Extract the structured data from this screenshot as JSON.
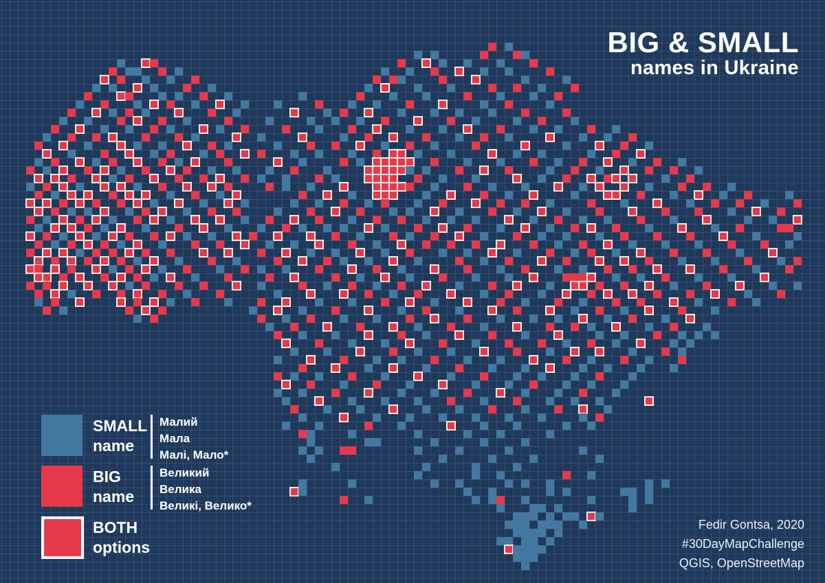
{
  "title": {
    "line1": "BIG & SMALL",
    "line2": "names in Ukraine"
  },
  "legend": {
    "items": [
      {
        "key": "small",
        "word": "SMALL",
        "word2": "name",
        "examples": [
          "Малий",
          "Мала",
          "Малі, Мало*"
        ]
      },
      {
        "key": "big",
        "word": "BIG",
        "word2": "name",
        "examples": [
          "Великий",
          "Велика",
          "Великі, Велико*"
        ]
      },
      {
        "key": "both",
        "word": "BOTH",
        "word2": "options",
        "examples": []
      }
    ]
  },
  "credits": {
    "lines": [
      "Fedir Gontsa, 2020",
      "#30DayMapChallenge",
      "QGIS, OpenStreetMap"
    ]
  },
  "colors": {
    "background": "#20395a",
    "grid_line": "rgba(125,165,220,0.18)",
    "small": "#44799f",
    "big": "#e6394b",
    "both_fill": "#e6394b",
    "both_border": "#f2eee5",
    "text": "#ffffff"
  },
  "map": {
    "cell_size": 12,
    "legend_chars": {
      "s": "small-name",
      "b": "big-name",
      "x": "both-options",
      ".": "empty"
    },
    "grid_rows": [
      [
        "..........",
        "..........",
        "..........",
        "..........",
        "..........",
        "..........",
        "..........",
        "..........",
        "..........",
        ".........."
      ],
      [
        "..........",
        "..........",
        "..........",
        "..........",
        "..........",
        "..........",
        "..........",
        "..........",
        "..........",
        ".........."
      ],
      [
        "..........",
        "..........",
        "..........",
        "..........",
        "..........",
        "..........",
        "..........",
        "..........",
        "..........",
        ".........."
      ],
      [
        "..........",
        "..........",
        "..........",
        "..........",
        "..........",
        "..........",
        "..........",
        "..........",
        "..........",
        ".........."
      ],
      [
        "..........",
        "..........",
        "..........",
        "..........",
        "..........",
        "..........",
        "..........",
        "..........",
        "..........",
        ".........."
      ],
      [
        "..........",
        "..........",
        "..........",
        "..........",
        "..........",
        ".........b",
        ".s........",
        "..........",
        "..........",
        ".........."
      ],
      [
        "..........",
        "..........",
        "..........",
        "..........",
        "..........",
        "s.s.....b.",
        "..bs......",
        "..........",
        "..........",
        ".........."
      ],
      [
        "..........",
        "....s..xb.",
        "..........",
        "..........",
        "........b.",
        ".x.s..s...",
        "s...b.....",
        "..........",
        "..........",
        ".........."
      ],
      [
        "..........",
        "...b.ss..b",
        ".s........",
        "..........",
        "......s..s",
        "..b..x..s.",
        ".s....b...",
        "..........",
        "..........",
        ".........."
      ],
      [
        "..........",
        "..x.b..s..",
        "s..b......",
        "..........",
        ".....b.bs.",
        "...b...x..",
        "...s....s.",
        "..........",
        "..........",
        ".........."
      ],
      [
        "..........",
        ".s.s..x.s.",
        "..b..s....",
        "..........",
        "....s.x...",
        "s...s....b",
        "..b..s...b",
        "..........",
        "..........",
        ".........."
      ],
      [
        "..........",
        "b...xb...s",
        ".s..b..s..",
        "......s...",
        "...b...s..",
        ".s....b...",
        "s...s..b..",
        "..........",
        "..........",
        ".........."
      ],
      [
        ".........s",
        "..b...s.x.",
        "b..s..x..s",
        "...s....b.",
        "..s..s...b",
        "...x....s.",
        ".b....s...",
        "..........",
        "..........",
        ".........."
      ],
      [
        "........b.",
        ".x.s.b.s..",
        ".x...b..s.",
        ".....x...s",
        ".b..x...s.",
        "..s..s...s",
        "...b....b.",
        "..........",
        "..........",
        ".........."
      ],
      [
        ".......s..",
        "s...b.x..b",
        "..s....b..",
        "..s....s..",
        "s..s..b...",
        "x...b..s..",
        "..s..b...s",
        "..........",
        "..........",
        ".........."
      ],
      [
        "......b..x",
        "..s..s..b.",
        "s...x.s..b",
        "....b...s.",
        "..b..x...s",
        "...s..x...",
        "b...s..s..",
        ".b..s.....",
        "..........",
        ".........."
      ],
      [
        ".....s..b.",
        ".b.x...b..",
        ".b.s....x.",
        ".s....x...",
        ".s..b..x..",
        ".b...s..b.",
        ".s....x...",
        "s..s..b...",
        "..........",
        ".........."
      ],
      [
        "....b..x..",
        "s...x.s..s",
        "..x..b.s..",
        "...s...b..",
        "b..x..s..b",
        "..s....b..",
        "...x....s.",
        "..x..b..s.",
        "..........",
        ".........."
      ],
      [
        ".....x..s.",
        "..b..x..s.",
        "b...s.b..x",
        ".b...s..s.",
        "..s..b.xx.",
        "s...s....x",
        "..s..s....",
        ".s..b..x..",
        "..........",
        ".........."
      ],
      [
        "....s.b..x",
        ".s.b..x..b",
        ".s.x...b..",
        "...x..s...",
        ".b.s.xxxxx",
        "..b...s...",
        "s...b..s..",
        "b..x..s..b",
        "..s.......",
        ".........."
      ],
      [
        "...b.s.x..",
        "b.x.s..b..",
        "x.b..s..s.",
        "..s..b...s",
        "....xxxxxs",
        ".s...b..x.",
        ".b....s..b",
        "..s..x..b.",
        ".b..s.....",
        ".........."
      ],
      [
        "....x.x.b.",
        ".x.s.b..x.",
        ".b..b.x..b",
        ".s..s...b.",
        "s...xxxx..",
        "b..s...s..",
        "..x..s..b.",
        ".x.bx.x...",
        "s..b......",
        ".........."
      ],
      [
        "...s.b.x.s",
        "..x.x.s..b",
        "..x..x.b..",
        "..b.s..s..",
        ".x...xxxxb",
        "..s...b..s",
        "...s...x..",
        "s.x..x..s.",
        "..b..b..s.",
        ".........."
      ],
      [
        "....b.s.x.",
        "x..b.x.x..",
        "s..b..s.x.",
        "......b..x",
        "..s..xxx..",
        ".s..x...b.",
        ".s..x....s",
        "...xx..b..",
        ".s..x..s..",
        "b....s...."
      ],
      [
        "...x.x.b.x",
        ".b..b.x.s.",
        ".x..s..x.s",
        ".....s..s.",
        ".b..s.b...",
        "s..b...x..",
        "b..b..s...",
        ".b...s...x",
        "...s..b..b",
        "..s...b..."
      ],
      [
        "....x.b.s.",
        "s.x..s.b.x",
        "..s..b..b.",
        "...s...b..",
        "x..b...s.s",
        "..x..s...b",
        "..s..x..s.",
        "..b...x...",
        "b...b...s.",
        ".x..b....."
      ],
      [
        "...b.s.x.b",
        ".x.s..b.x.",
        "s..x..x..s",
        "..b..x..b.",
        "..s..b..b.",
        ".s..s..s..",
        ".x..s..b..",
        "s..s...b..",
        ".s...x....",
        "s..s..x..."
      ],
      [
        "....s.x.x.",
        "b.s.x..s..",
        ".b..x..s..",
        ".s..b.s..s",
        ".s..x.s...",
        "b..x..b...",
        "s..x..s..b",
        ".x..b...s.",
        "..x...s..b",
        "....bb...."
      ],
      [
        "...x.b.s.x",
        ".s.x.b..b.",
        "x.s..s..x.",
        "b..x...x..",
        "b..s...b.s",
        "..b..x..s.",
        "..b..s..s.",
        "..s..b...b",
        "...b...x..",
        ".s....s..."
      ],
      [
        "....b.s.b.",
        "x.b.s.x..s",
        "...b..b..x",
        "..s..s..x.",
        "..b..s..x.",
        ".b..b..b..",
        "x...b..s..",
        "b..x..s...",
        "s...s...b.",
        "..b..s...."
      ],
      [
        "...b.x.x.s",
        ".b.b.x.b..",
        "b...x..x..",
        ".b..x..s..",
        "s..x..s..b",
        "...s..s..x",
        "..s...b..s",
        ".b..s..x..",
        ".b...b...s",
        "...x......"
      ],
      [
        "....x.b.x.",
        "b.x.b.s.x.",
        ".s...b..s.",
        "...b..x..b",
        ".s..s..x..",
        "s....b..s.",
        ".b...x..b.",
        "..x..x..b.",
        "..s...s...",
        "b...s.b..."
      ],
      [
        "...xb.x.b.",
        ".x.s.b.x.s",
        "..b...s..b",
        ".s..s...b.",
        "..x..b..s.",
        "..x...b...",
        "s..b...s..",
        "s..b..b..x",
        "...x...b..",
        ".s...b...."
      ],
      [
        "....xx.b.x",
        "..b.x.b.s.",
        "x..s...b..",
        "..b..x....",
        "b..s..x..s",
        "...b...s..",
        ".s..x...bb",
        "bx..s..s..",
        "b...s...s.",
        "..x......."
      ],
      [
        "...b.b.x..",
        "x..x.s.b..",
        ".b..b...x.",
        ".s....b..s",
        "..b..s..b.",
        ".x...s...b",
        "..x...s..x",
        "x.b..b..x.",
        ".s...b...x",
        "...s..s..."
      ],
      [
        "....b.x.s.",
        ".b..b.x..b",
        "..s...b...",
        "...s...x..",
        ".x..b..s..",
        "b...x...s.",
        ".b...s..x.",
        ".b.x..x..b",
        "...b..x...",
        "s...b....."
      ],
      [
        "....s.b..x",
        "....x.b.x.",
        "s..b...s..",
        ".b..x...s.",
        "..s...b..x",
        "..s...x...",
        "b..s...b..",
        "s...b..b..",
        ".x..s...b.",
        ".s........"
      ],
      [
        ".....b.s..",
        ".....b.x.b",
        "..........",
        "s..x..s...",
        "b...x...s.",
        ".b...s...x",
        "..b...x..s",
        "..b..s..x.",
        "..b...s...",
        ".........."
      ],
      [
        "..........",
        "......s.b.",
        "..........",
        ".b..s..b..",
        ".s...s...b",
        "..x...b...",
        "s...s..s..",
        "x..s..b...",
        "s..x......",
        ".........."
      ],
      [
        "..........",
        "..........",
        "..........",
        "..s..b...x",
        "...b...x..",
        "s...b...s.",
        "..x...b..b",
        ".s..x...s.",
        ".b...s....",
        ".........."
      ],
      [
        "..........",
        "..........",
        "..........",
        "...b..s...",
        "s...x...b.",
        ".s...x...b",
        "...s...x..",
        "..s..s...b",
        "..s.s.s...",
        ".........."
      ],
      [
        "..........",
        "..........",
        "..........",
        "....x...b.",
        "..s...s..x",
        "...b...s..",
        ".b...b..s.",
        ".b..s..x..",
        ".s.s......",
        ".........."
      ],
      [
        "..........",
        "..........",
        "..........",
        ".....s...s",
        "...x...b..",
        "s...s...x.",
        "..b...s..x",
        "..x...s...",
        "b.s.......",
        ".........."
      ],
      [
        "..........",
        "..........",
        "..........",
        "...s...x..",
        ".b...s..s.",
        "..b...s...",
        "s...x...b.",
        ".s...b..s.",
        "..b.......",
        ".........."
      ],
      [
        "..........",
        "..........",
        "..........",
        "......b...",
        "x...s..x..",
        ".s...b...s",
        "...s..x...",
        "s..s...s..",
        ".s........",
        ".........."
      ],
      [
        "..........",
        "..........",
        "..........",
        "...b.s..s.",
        "..b...s...",
        "x...s...b.",
        "..s..s...s",
        "..b...s...",
        "..........",
        ".........."
      ],
      [
        "..........",
        "..........",
        "..........",
        "....x..b..",
        ".s...b...s",
        "...x...s..",
        ".s..b...s.",
        ".s...s....",
        "..........",
        ".........."
      ],
      [
        "..........",
        "..........",
        "..........",
        "...s..s...",
        "b...x...s.",
        "..s...b...",
        "x..s...s..",
        "b...s.....",
        "..........",
        ".........."
      ],
      [
        "..........",
        "..........",
        "..........",
        "....s...x.",
        "..s...s...",
        "s...b...s.",
        "..b...s..s",
        "..s.....x.",
        "..........",
        ".........."
      ],
      [
        "..........",
        "..........",
        "..........",
        ".....b...s",
        "...s...x..",
        ".s...s...b",
        "...s...b..",
        "x..s......",
        "..........",
        ".........."
      ],
      [
        "..........",
        "..........",
        "..........",
        "......s...",
        ".x...s...s",
        "...s...s..",
        ".s...s....",
        "s.b.......",
        "..........",
        ".........."
      ],
      [
        "..........",
        "..........",
        "..........",
        "....s...s.",
        "....b...s.",
        "....x...s.",
        "..s.....s.",
        ".s........",
        "..........",
        ".........."
      ],
      [
        "..........",
        "..........",
        "..........",
        "......bs..",
        "..s.......",
        "s.....s...",
        "s.....s...",
        "..........",
        "..........",
        ".........."
      ],
      [
        "..........",
        "..........",
        "..........",
        ".......s..",
        "....ss....",
        "..s.....s.",
        "...s......",
        "..........",
        "..........",
        ".........."
      ],
      [
        "..........",
        "..........",
        "..........",
        "......s.s.",
        ".bb.......",
        "s....s....",
        ".s........",
        "s.........",
        "..........",
        ".........."
      ],
      [
        "..........",
        "..........",
        "..........",
        ".......s..",
        "..........",
        "...s.....s",
        "....s.....",
        "..s.......",
        "..........",
        ".........."
      ],
      [
        "..........",
        "..........",
        "..........",
        "..........",
        "s.........",
        ".s.....s..",
        "..s.......",
        "..........",
        "..........",
        ".........."
      ],
      [
        "..........",
        "..........",
        "..........",
        "..........",
        "..........",
        "s......s..",
        "s.......b.",
        ".s........",
        "..........",
        ".........."
      ],
      [
        "..........",
        "..........",
        "..........",
        "......s...",
        "..s.......",
        "..s..s....",
        ".s.s..s...",
        "........s.",
        "s.........",
        ".........."
      ],
      [
        "..........",
        "..........",
        "..........",
        ".....xs...",
        "..........",
        "......s..s",
        "......s.s.",
        ".....ss.s.",
        "..........",
        ".........."
      ],
      [
        "..........",
        "..........",
        "..........",
        "..........",
        ".b..s.....",
        ".......s.s",
        "b..s......",
        ".s....s.s.",
        "..........",
        ".........."
      ],
      [
        "..........",
        "..........",
        "..........",
        "..........",
        "..........",
        "..........",
        "s...ss.s..",
        "......s...",
        "..........",
        ".........."
      ],
      [
        "..........",
        "..........",
        "..........",
        "..........",
        "..........",
        "..........",
        "..sss.s.ss",
        ".xs.......",
        "..........",
        ".........."
      ],
      [
        "..........",
        "..........",
        "..........",
        "..........",
        "..........",
        "..........",
        ".sss.sss..",
        "s.........",
        "..........",
        ".........."
      ],
      [
        "..........",
        "..........",
        "..........",
        "..........",
        "..........",
        "..........",
        "..ssss.s..",
        "..........",
        "..........",
        ".........."
      ],
      [
        "..........",
        "..........",
        "..........",
        "..........",
        "..........",
        "..........",
        "ss.ss.s...",
        "..........",
        "..........",
        ".........."
      ],
      [
        "..........",
        "..........",
        "..........",
        "..........",
        "..........",
        "..........",
        ".xssss....",
        "..........",
        "..........",
        ".........."
      ],
      [
        "..........",
        "..........",
        "..........",
        "..........",
        "..........",
        "..........",
        "..sss.....",
        "..........",
        "..........",
        ".........."
      ],
      [
        "..........",
        "..........",
        "..........",
        "..........",
        "..........",
        "..........",
        "...s......",
        "..........",
        "..........",
        ".........."
      ],
      [
        "..........",
        "..........",
        "..........",
        "..........",
        "..........",
        "..........",
        "..........",
        "..........",
        "..........",
        ".........."
      ],
      [
        "..........",
        "..........",
        "..........",
        "..........",
        "..........",
        "..........",
        "..........",
        "..........",
        "..........",
        ".........."
      ]
    ]
  }
}
